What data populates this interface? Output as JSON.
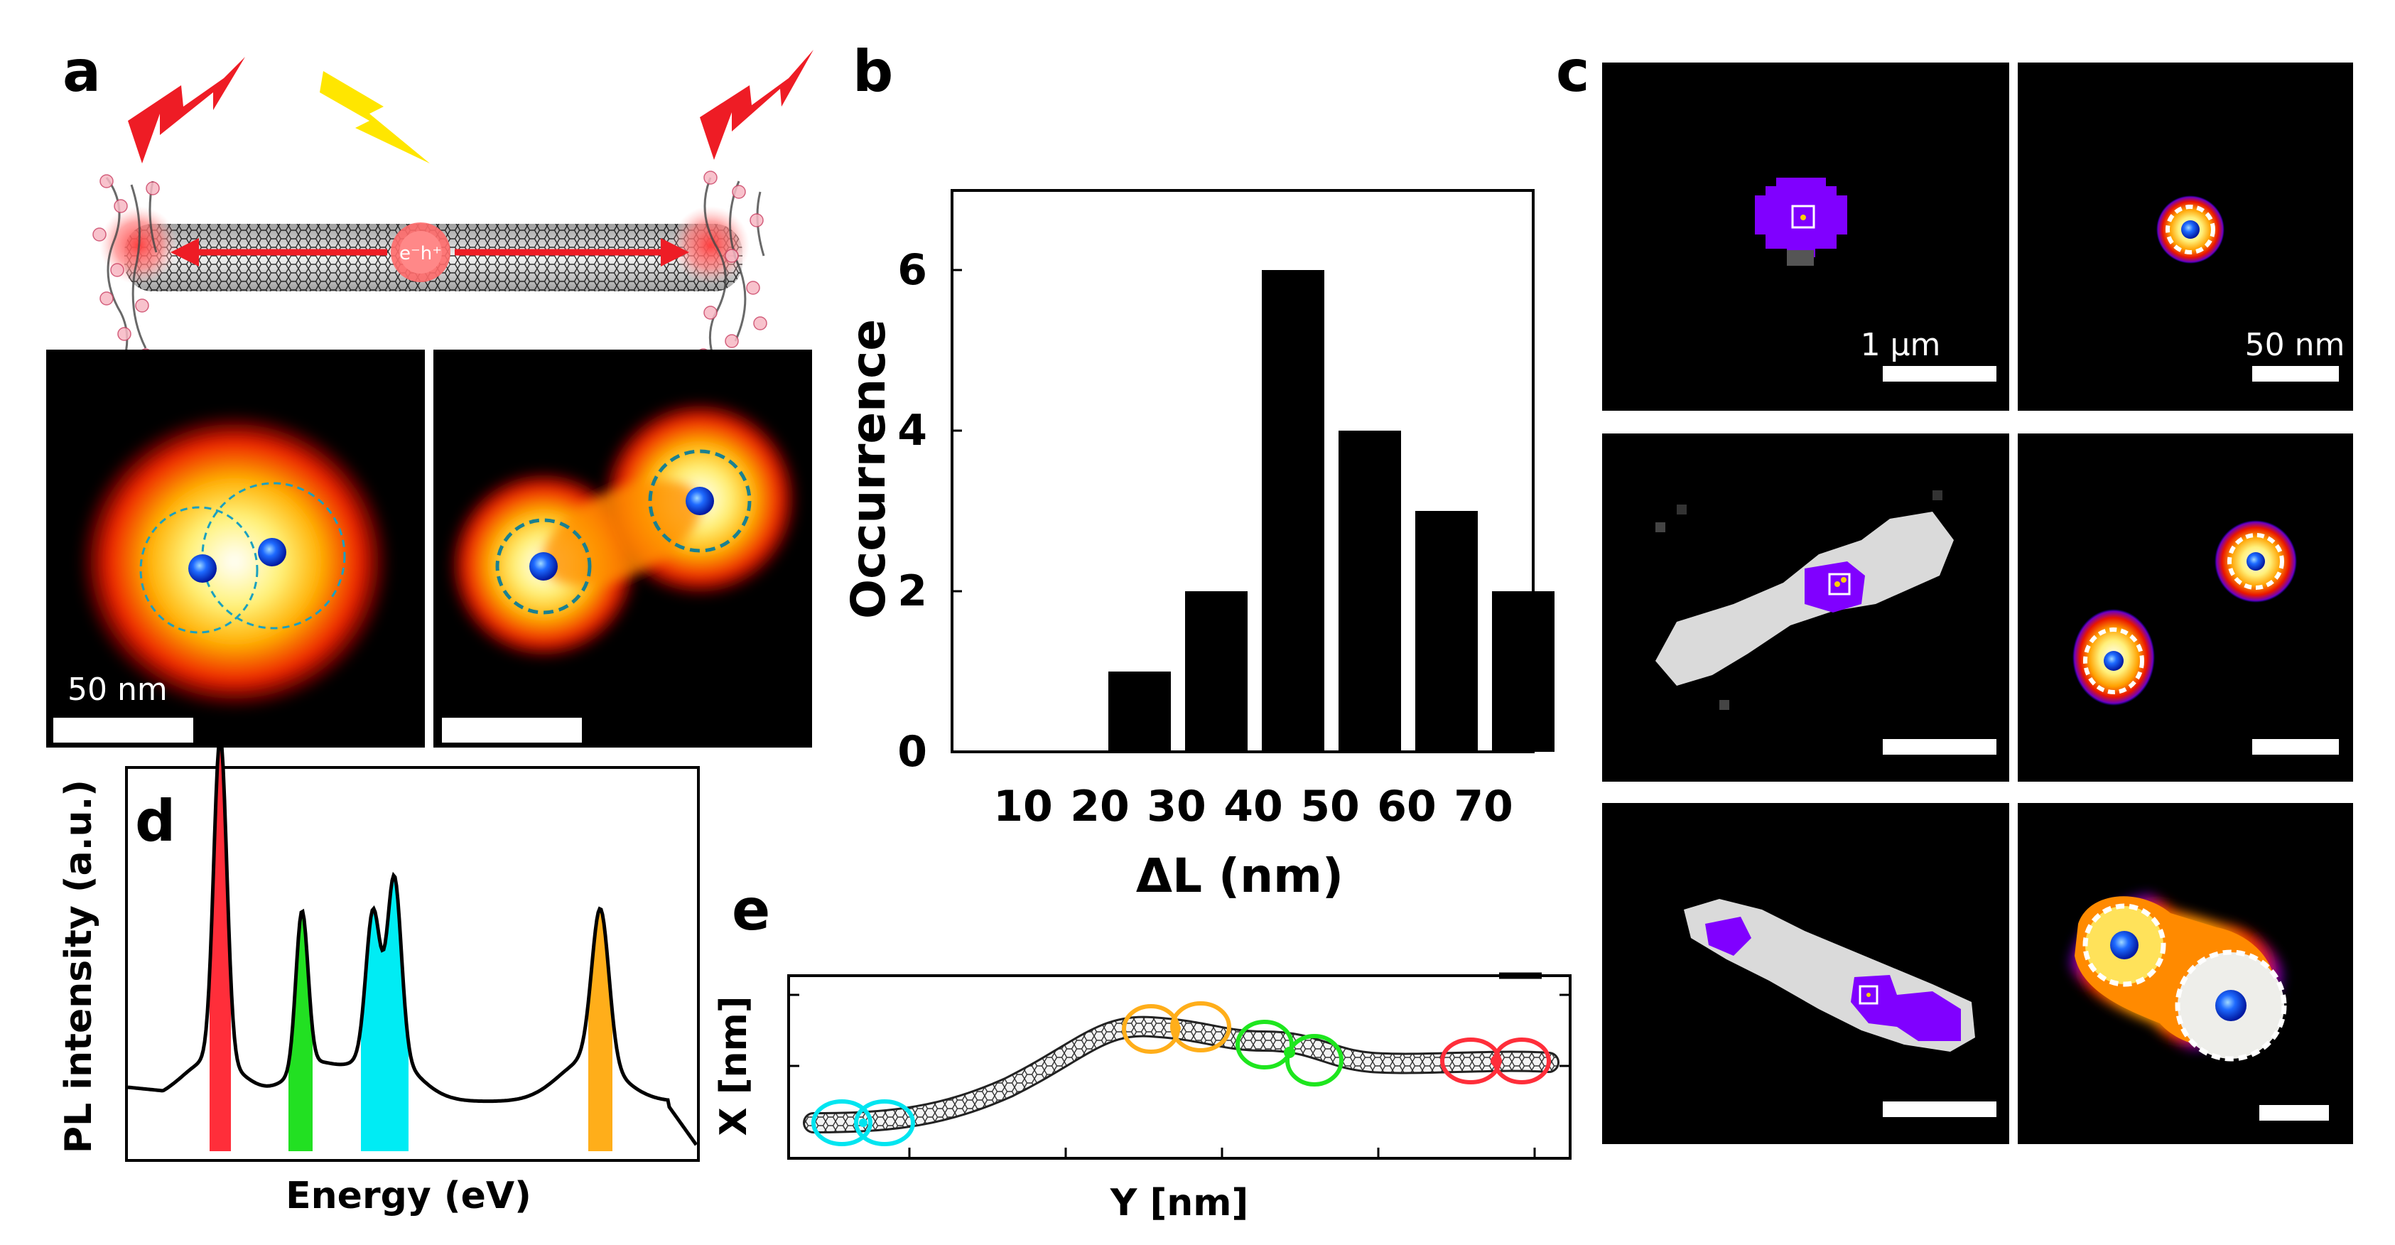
{
  "panels": {
    "a": "a",
    "b": "b",
    "c": "c",
    "d": "d",
    "e": "e"
  },
  "panel_a": {
    "tube_label": "e⁻h⁺",
    "scalebar_label": "50 nm"
  },
  "panel_c": {
    "scalebar_left": "1 μm",
    "scalebar_right": "50 nm"
  },
  "panel_d": {
    "xlabel": "Energy (eV)",
    "ylabel": "PL intensity (a.u.)",
    "colors": {
      "red": "#ff2e3a",
      "green": "#22e022",
      "cyan": "#00ecf4",
      "orange": "#ffae1a"
    }
  },
  "panel_e": {
    "xlabel": "Y [nm]",
    "ylabel": "X [nm]"
  },
  "chart_data": {
    "type": "bar",
    "title": "",
    "xlabel": "ΔL (nm)",
    "ylabel": "Occurrence",
    "categories": [
      "10",
      "20",
      "30",
      "40",
      "50",
      "60",
      "70"
    ],
    "values": [
      0,
      1,
      2,
      6,
      4,
      3,
      2
    ],
    "ylim": [
      0,
      7
    ],
    "yticks": [
      0,
      2,
      4,
      6
    ],
    "bar_color": "#000000"
  }
}
